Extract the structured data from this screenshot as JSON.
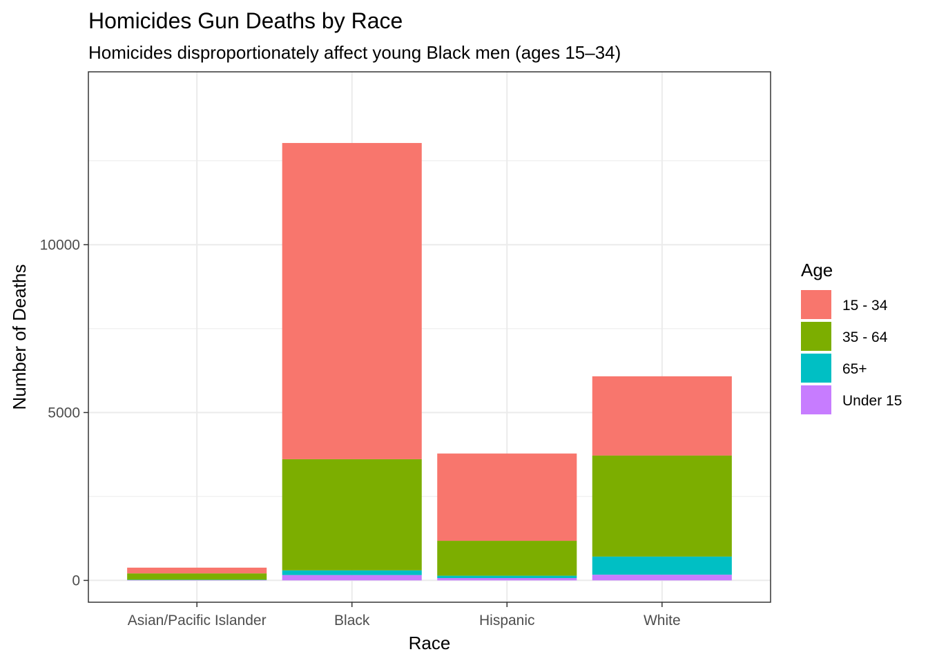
{
  "chart_data": {
    "type": "bar",
    "stacked": true,
    "title": "Homicides Gun Deaths by Race",
    "subtitle": "Homicides disproportionately affect young Black men (ages 15–34)",
    "xlabel": "Race",
    "ylabel": "Number of Deaths",
    "categories": [
      "Asian/Pacific Islander",
      "Black",
      "Hispanic",
      "White"
    ],
    "series": [
      {
        "name": "Under 15",
        "color": "#C77CFF",
        "values": [
          10,
          160,
          70,
          170
        ]
      },
      {
        "name": "65+",
        "color": "#00BFC4",
        "values": [
          10,
          140,
          70,
          540
        ]
      },
      {
        "name": "35 - 64",
        "color": "#7CAE00",
        "values": [
          190,
          3310,
          1040,
          3010
        ]
      },
      {
        "name": "15 - 34",
        "color": "#F8766D",
        "values": [
          170,
          9420,
          2600,
          2360
        ]
      }
    ],
    "ylim": [
      -650,
      15150
    ],
    "yticks": [
      0,
      5000,
      10000
    ],
    "ytick_labels": [
      "0",
      "5000",
      "10000"
    ],
    "legend": {
      "title": "Age",
      "position": "right",
      "entries": [
        "15 - 34",
        "35 - 64",
        "65+",
        "Under 15"
      ]
    },
    "grid": true
  }
}
